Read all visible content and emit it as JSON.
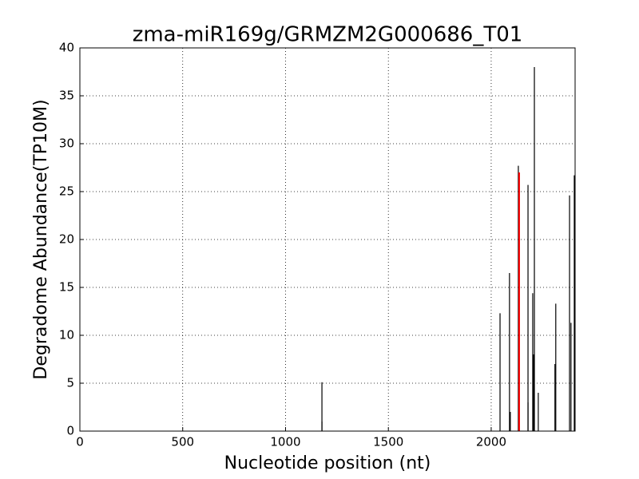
{
  "chart_data": {
    "type": "stem",
    "title": "zma-miR169g/GRMZM2G000686_T01",
    "x_label": "Nucleotide position (nt)",
    "y_label": "Degradome Abundance(TP10M)",
    "series": [
      {
        "color": "#000000",
        "x": [
          1177,
          1177,
          2043,
          2089,
          2093,
          2132,
          2179,
          2179,
          2202,
          2206,
          2210,
          2229,
          2310,
          2314,
          2381,
          2388,
          2404
        ],
        "values": [
          5.1,
          1,
          12.3,
          16.5,
          2,
          27.7,
          25.7,
          3,
          14.4,
          8,
          38,
          4,
          7,
          13.3,
          24.6,
          11.3,
          26.7
        ]
      },
      {
        "color": "#ff0000",
        "x": [
          2136
        ],
        "values": [
          27
        ]
      }
    ],
    "xlim": [
      0,
      2408
    ],
    "xticks": [
      0,
      500,
      1000,
      1500,
      2000
    ],
    "ylim": [
      0,
      40
    ],
    "yticks": [
      0,
      5,
      10,
      15,
      20,
      25,
      30,
      35,
      40
    ],
    "grid": true
  }
}
